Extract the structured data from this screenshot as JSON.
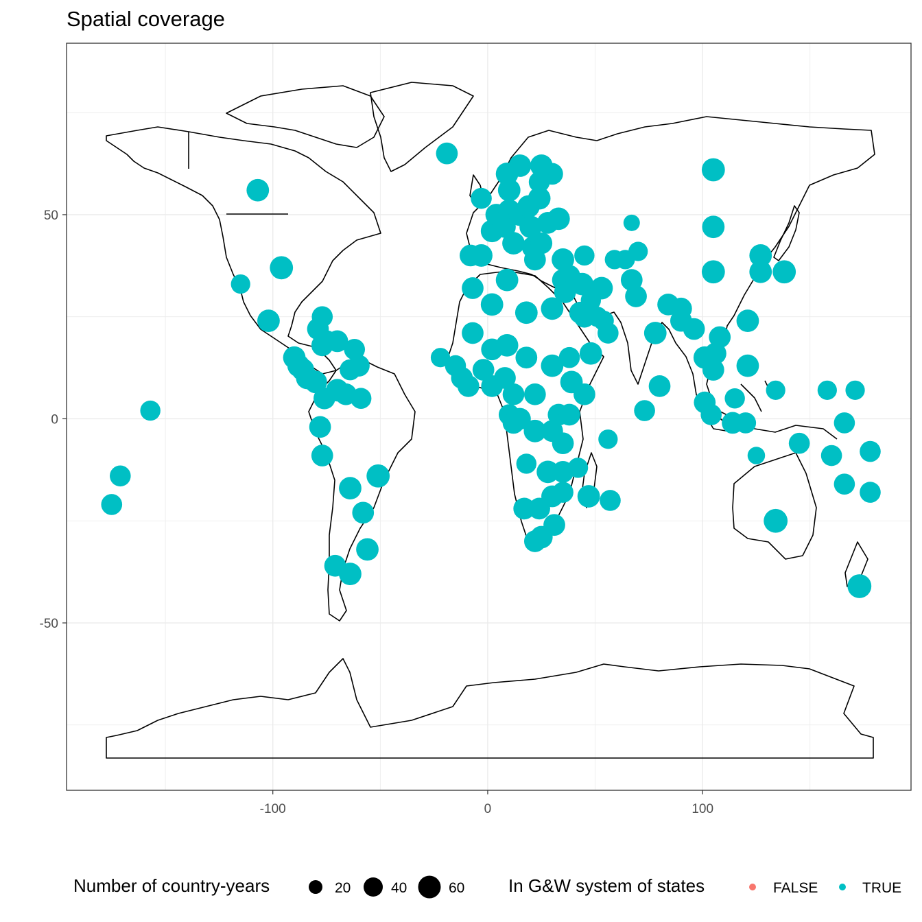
{
  "title": "Spatial coverage",
  "colors": {
    "true_color": "#00BFC4",
    "false_color": "#F8766D",
    "grid": "#EBEBEB"
  },
  "legend": {
    "size_title": "Number of country-years",
    "size_labels": [
      "20",
      "40",
      "60"
    ],
    "color_title": "In G&W system of states",
    "color_labels": [
      "FALSE",
      "TRUE"
    ]
  },
  "chart_data": {
    "type": "scatter",
    "title": "Spatial coverage",
    "xlabel": "",
    "ylabel": "",
    "xlim": [
      -196,
      197
    ],
    "ylim": [
      -91,
      92
    ],
    "x_ticks": [
      "-100",
      "0",
      "100"
    ],
    "x_tick_values": [
      -100,
      0,
      100
    ],
    "y_ticks": [
      "50",
      "0",
      "-50"
    ],
    "y_tick_values": [
      50,
      0,
      -50
    ],
    "grid": true,
    "legend_position": "bottom",
    "basemap": "world country outlines",
    "points": [
      [
        -19,
        65,
        55,
        true
      ],
      [
        -107,
        56,
        60,
        true
      ],
      [
        -96,
        37,
        65,
        true
      ],
      [
        -115,
        33,
        40,
        true
      ],
      [
        -102,
        24,
        60,
        true
      ],
      [
        105,
        61,
        65,
        true
      ],
      [
        105,
        47,
        60,
        true
      ],
      [
        105,
        36,
        65,
        true
      ],
      [
        67,
        48,
        25,
        true
      ],
      [
        127,
        40,
        60,
        true
      ],
      [
        127,
        36,
        60,
        true
      ],
      [
        138,
        36,
        65,
        true
      ],
      [
        121,
        24,
        60,
        true
      ],
      [
        121,
        13,
        60,
        true
      ],
      [
        134,
        -25,
        70,
        true
      ],
      [
        173,
        -41,
        70,
        true
      ],
      [
        -171,
        -14,
        50,
        true
      ],
      [
        -175,
        -21,
        50,
        true
      ],
      [
        -157,
        2,
        45,
        true
      ],
      [
        -77,
        -9,
        55,
        true
      ],
      [
        -78,
        -2,
        55,
        true
      ],
      [
        -64,
        -17,
        60,
        true
      ],
      [
        -58,
        -23,
        55,
        true
      ],
      [
        -51,
        -14,
        65,
        true
      ],
      [
        -56,
        -32,
        60,
        true
      ],
      [
        -71,
        -36,
        55,
        true
      ],
      [
        -64,
        -38,
        60,
        true
      ],
      [
        -90,
        15,
        60,
        true
      ],
      [
        -88,
        13,
        60,
        true
      ],
      [
        -86,
        12,
        60,
        true
      ],
      [
        -84,
        10,
        60,
        true
      ],
      [
        -80,
        9,
        60,
        true
      ],
      [
        -76,
        5,
        55,
        true
      ],
      [
        -70,
        7,
        60,
        true
      ],
      [
        -66,
        6,
        55,
        true
      ],
      [
        -59,
        5,
        50,
        true
      ],
      [
        -60,
        13,
        55,
        true
      ],
      [
        -62,
        17,
        50,
        true
      ],
      [
        -64,
        12,
        50,
        true
      ],
      [
        -70,
        19,
        55,
        true
      ],
      [
        -75,
        19,
        55,
        true
      ],
      [
        -77,
        18,
        55,
        true
      ],
      [
        -79,
        22,
        55,
        true
      ],
      [
        -77,
        25,
        50,
        true
      ],
      [
        -22,
        15,
        40,
        true
      ],
      [
        -15,
        13,
        50,
        true
      ],
      [
        -12,
        10,
        55,
        true
      ],
      [
        -9,
        8,
        55,
        true
      ],
      [
        -7,
        21,
        55,
        true
      ],
      [
        -2,
        12,
        55,
        true
      ],
      [
        2,
        8,
        55,
        true
      ],
      [
        2,
        17,
        55,
        true
      ],
      [
        8,
        10,
        55,
        true
      ],
      [
        9,
        18,
        60,
        true
      ],
      [
        12,
        6,
        55,
        true
      ],
      [
        18,
        15,
        55,
        true
      ],
      [
        22,
        6,
        55,
        true
      ],
      [
        30,
        13,
        60,
        true
      ],
      [
        39,
        9,
        60,
        true
      ],
      [
        45,
        6,
        55,
        true
      ],
      [
        38,
        15,
        50,
        true
      ],
      [
        48,
        16,
        60,
        true
      ],
      [
        43,
        26,
        55,
        true
      ],
      [
        18,
        26,
        60,
        true
      ],
      [
        30,
        27,
        60,
        true
      ],
      [
        2,
        28,
        60,
        true
      ],
      [
        -7,
        32,
        55,
        true
      ],
      [
        9,
        34,
        60,
        true
      ],
      [
        10,
        1,
        50,
        true
      ],
      [
        12,
        -1,
        55,
        true
      ],
      [
        15,
        0,
        55,
        true
      ],
      [
        22,
        -3,
        60,
        true
      ],
      [
        30,
        -3,
        55,
        true
      ],
      [
        33,
        1,
        55,
        true
      ],
      [
        38,
        1,
        55,
        true
      ],
      [
        35,
        -6,
        55,
        true
      ],
      [
        28,
        -13,
        60,
        true
      ],
      [
        35,
        -13,
        55,
        true
      ],
      [
        42,
        -12,
        45,
        true
      ],
      [
        47,
        -19,
        60,
        true
      ],
      [
        56,
        -5,
        40,
        true
      ],
      [
        57,
        -20,
        50,
        true
      ],
      [
        18,
        -11,
        45,
        true
      ],
      [
        17,
        -22,
        55,
        true
      ],
      [
        24,
        -22,
        55,
        true
      ],
      [
        30,
        -19,
        55,
        true
      ],
      [
        35,
        -18,
        50,
        true
      ],
      [
        31,
        -26,
        55,
        true
      ],
      [
        25,
        -29,
        60,
        true
      ],
      [
        22,
        -30,
        55,
        true
      ],
      [
        -3,
        40,
        60,
        true
      ],
      [
        -8,
        40,
        55,
        true
      ],
      [
        -3,
        54,
        50,
        true
      ],
      [
        2,
        46,
        60,
        true
      ],
      [
        4,
        50,
        55,
        true
      ],
      [
        8,
        47,
        55,
        true
      ],
      [
        10,
        51,
        60,
        true
      ],
      [
        12,
        43,
        60,
        true
      ],
      [
        15,
        50,
        60,
        true
      ],
      [
        20,
        47,
        60,
        true
      ],
      [
        19,
        52,
        60,
        true
      ],
      [
        24,
        54,
        60,
        true
      ],
      [
        28,
        48,
        55,
        true
      ],
      [
        21,
        42,
        55,
        true
      ],
      [
        22,
        39,
        55,
        true
      ],
      [
        25,
        43,
        55,
        true
      ],
      [
        33,
        49,
        60,
        true
      ],
      [
        30,
        60,
        55,
        true
      ],
      [
        24,
        58,
        50,
        true
      ],
      [
        25,
        62,
        60,
        true
      ],
      [
        15,
        62,
        60,
        true
      ],
      [
        9,
        60,
        60,
        true
      ],
      [
        10,
        56,
        60,
        true
      ],
      [
        -19,
        65,
        50,
        true
      ],
      [
        35,
        39,
        60,
        true
      ],
      [
        35,
        34,
        55,
        true
      ],
      [
        38,
        35,
        55,
        true
      ],
      [
        36,
        31,
        55,
        true
      ],
      [
        44,
        33,
        60,
        true
      ],
      [
        53,
        32,
        60,
        true
      ],
      [
        45,
        40,
        45,
        true
      ],
      [
        48,
        29,
        45,
        true
      ],
      [
        45,
        25,
        55,
        true
      ],
      [
        51,
        25,
        45,
        true
      ],
      [
        54,
        24,
        45,
        true
      ],
      [
        56,
        21,
        50,
        true
      ],
      [
        67,
        34,
        55,
        true
      ],
      [
        69,
        30,
        55,
        true
      ],
      [
        64,
        39,
        40,
        true
      ],
      [
        70,
        41,
        40,
        true
      ],
      [
        59,
        39,
        40,
        true
      ],
      [
        78,
        21,
        60,
        true
      ],
      [
        84,
        28,
        55,
        true
      ],
      [
        90,
        27,
        55,
        true
      ],
      [
        90,
        24,
        55,
        true
      ],
      [
        96,
        22,
        55,
        true
      ],
      [
        101,
        15,
        60,
        true
      ],
      [
        105,
        12,
        55,
        true
      ],
      [
        106,
        16,
        55,
        true
      ],
      [
        108,
        20,
        55,
        true
      ],
      [
        101,
        4,
        55,
        true
      ],
      [
        104,
        1,
        50,
        true
      ],
      [
        115,
        5,
        45,
        true
      ],
      [
        114,
        -1,
        55,
        true
      ],
      [
        120,
        -1,
        50,
        true
      ],
      [
        125,
        -9,
        30,
        true
      ],
      [
        80,
        8,
        55,
        true
      ],
      [
        73,
        2,
        50,
        true
      ],
      [
        145,
        -6,
        50,
        true
      ],
      [
        160,
        -9,
        50,
        true
      ],
      [
        166,
        -1,
        50,
        true
      ],
      [
        158,
        7,
        40,
        true
      ],
      [
        171,
        7,
        40,
        true
      ],
      [
        134,
        7,
        40,
        true
      ],
      [
        166,
        -16,
        50,
        true
      ],
      [
        178,
        -18,
        50,
        true
      ],
      [
        178,
        -8,
        50,
        true
      ]
    ]
  }
}
